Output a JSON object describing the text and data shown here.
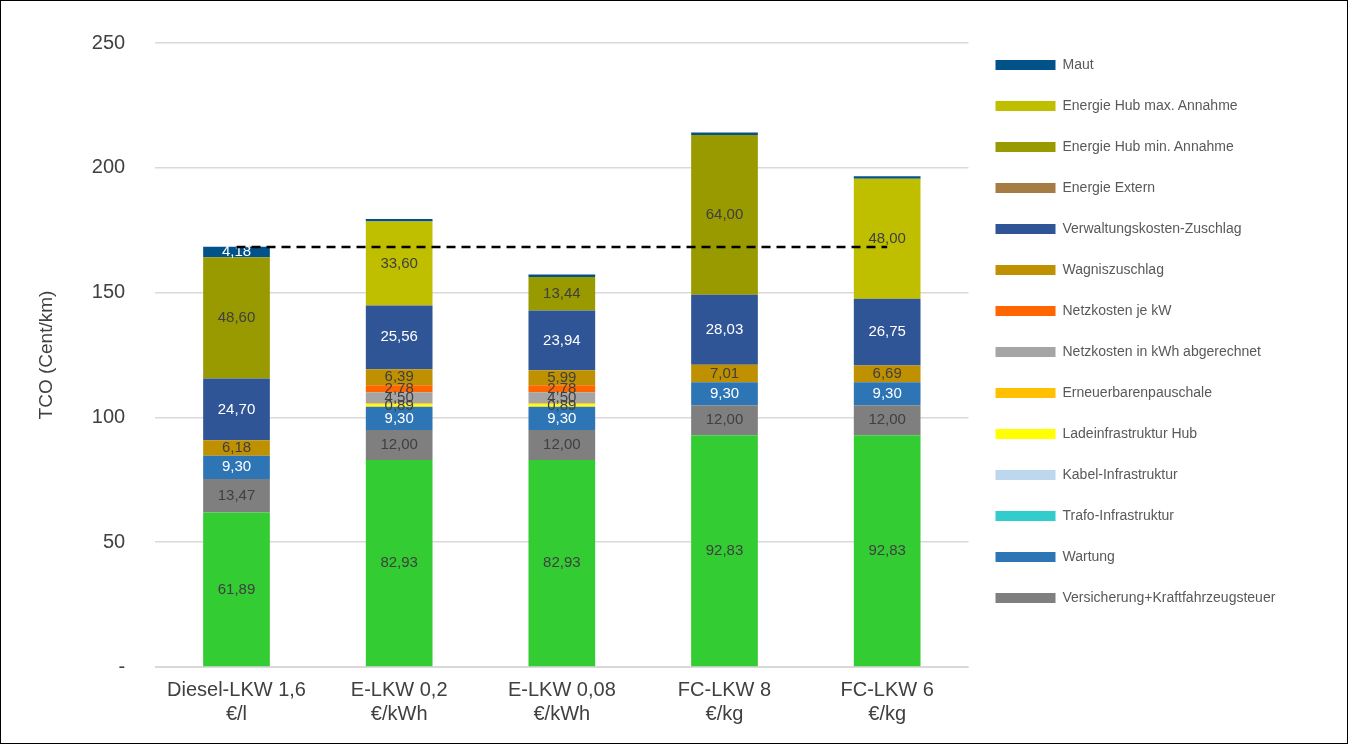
{
  "chart_data": {
    "type": "bar",
    "stacked": true,
    "ylabel": "TCO (Cent/km)",
    "categories": [
      "Diesel-LKW 1,6 €/l",
      "E-LKW 0,2 €/kWh",
      "E-LKW 0,08 €/kWh",
      "FC-LKW 8 €/kg",
      "FC-LKW 6 €/kg"
    ],
    "ylim": [
      0,
      250
    ],
    "yticks": [
      {
        "value": 0,
        "label": "-"
      },
      50,
      100,
      150,
      200,
      250
    ],
    "grid": "y",
    "legend": "right",
    "data_labels": false,
    "ref_lines": [
      {
        "axis": "y",
        "value": 168.3,
        "color": "#000000",
        "line_style": "dashed"
      }
    ],
    "series": [
      {
        "color": "#33cc33",
        "values": [
          61.89,
          82.93,
          82.93,
          92.83,
          92.83
        ],
        "value_labels": [
          "61,89",
          "82,93",
          "82,93",
          "92,83",
          "92,83"
        ]
      },
      {
        "name": "Versicherung+Kraftfahrzeugsteuer",
        "color": "#7f7f7f",
        "values": [
          13.47,
          12.0,
          12.0,
          12.0,
          12.0
        ],
        "value_labels": [
          "13,47",
          "12,00",
          "12,00",
          "12,00",
          "12,00"
        ]
      },
      {
        "name": "Wartung",
        "color": "#2e75b6",
        "values": [
          9.3,
          9.3,
          9.3,
          9.3,
          9.3
        ],
        "value_labels": [
          "9,30",
          "9,30",
          "9,30",
          "9,30",
          "9,30"
        ]
      },
      {
        "name": "Trafo-Infrastruktur",
        "color": "#33cccc",
        "values": [
          0,
          0,
          0,
          0,
          0
        ]
      },
      {
        "name": "Kabel-Infrastruktur",
        "color": "#bdd7ee",
        "values": [
          0,
          0,
          0,
          0,
          0
        ]
      },
      {
        "name": "Ladeinfrastruktur Hub",
        "color": "#ffff00",
        "values": [
          0,
          0.89,
          0.89,
          0,
          0
        ],
        "value_labels": [
          null,
          "0,89",
          "0,89",
          null,
          null
        ]
      },
      {
        "name": "Erneuerbarenpauschale",
        "color": "#ffc000",
        "values": [
          0,
          0.5,
          0.5,
          0,
          0
        ]
      },
      {
        "name": "Netzkosten in kWh abgerechnet",
        "color": "#a5a5a5",
        "values": [
          0,
          4.5,
          4.5,
          0,
          0
        ],
        "value_labels": [
          null,
          "4,50",
          "4,50",
          null,
          null
        ]
      },
      {
        "name": "Netzkosten je kW",
        "color": "#ff6600",
        "values": [
          0,
          2.78,
          2.78,
          0,
          0
        ],
        "value_labels": [
          null,
          "2,78",
          "2,78",
          null,
          null
        ]
      },
      {
        "name": "Wagniszuschlag",
        "color": "#bf9000",
        "values": [
          6.18,
          6.39,
          5.99,
          7.01,
          6.69
        ],
        "value_labels": [
          "6,18",
          "6,39",
          "5,99",
          "7,01",
          "6,69"
        ]
      },
      {
        "name": "Verwaltungskosten-Zuschlag",
        "color": "#2f5597",
        "values": [
          24.7,
          25.56,
          23.94,
          28.03,
          26.75
        ],
        "value_labels": [
          "24,70",
          "25,56",
          "23,94",
          "28,03",
          "26,75"
        ]
      },
      {
        "name": "Energie Extern",
        "color": "#a67c45",
        "values": [
          0,
          0,
          0,
          0,
          0
        ]
      },
      {
        "name": "Energie Hub min. Annahme",
        "color": "#999900",
        "values": [
          48.6,
          0,
          13.44,
          64.0,
          0
        ],
        "value_labels": [
          "48,60",
          null,
          "13,44",
          "64,00",
          null
        ]
      },
      {
        "name": "Energie Hub max. Annahme",
        "color": "#bfbf00",
        "values": [
          0,
          33.6,
          0,
          0,
          48.0
        ],
        "value_labels": [
          null,
          "33,60",
          null,
          null,
          "48,00"
        ]
      },
      {
        "name": "Maut",
        "color": "#02528a",
        "values": [
          4.18,
          1.0,
          1.0,
          1.0,
          1.0
        ],
        "value_labels": [
          "4,18",
          null,
          null,
          null,
          null
        ]
      }
    ]
  }
}
